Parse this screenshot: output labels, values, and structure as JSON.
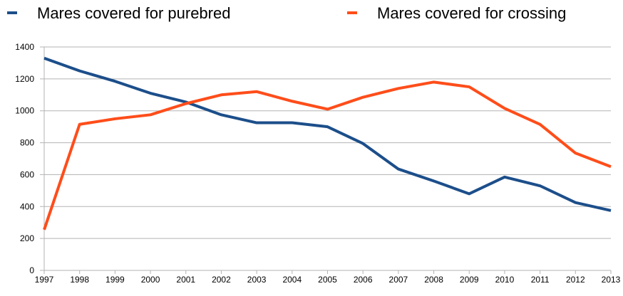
{
  "chart_data": {
    "type": "line",
    "categories": [
      "1997",
      "1998",
      "1999",
      "2000",
      "2001",
      "2002",
      "2003",
      "2004",
      "2005",
      "2006",
      "2007",
      "2008",
      "2009",
      "2010",
      "2011",
      "2012",
      "2013"
    ],
    "series": [
      {
        "name": "Mares covered for purebred",
        "color": "#1c4e8a",
        "values": [
          1330,
          1250,
          1185,
          1110,
          1055,
          975,
          925,
          925,
          900,
          795,
          635,
          560,
          480,
          585,
          530,
          425,
          375
        ]
      },
      {
        "name": "Mares covered for crossing",
        "color": "#ff4d1a",
        "values": [
          255,
          915,
          950,
          975,
          1045,
          1100,
          1120,
          1060,
          1010,
          1085,
          1140,
          1180,
          1150,
          1015,
          915,
          735,
          650
        ]
      }
    ],
    "ylim": [
      0,
      1400
    ],
    "yticks": [
      0,
      200,
      400,
      600,
      800,
      1000,
      1200,
      1400
    ],
    "grid": true,
    "legend": "top"
  }
}
